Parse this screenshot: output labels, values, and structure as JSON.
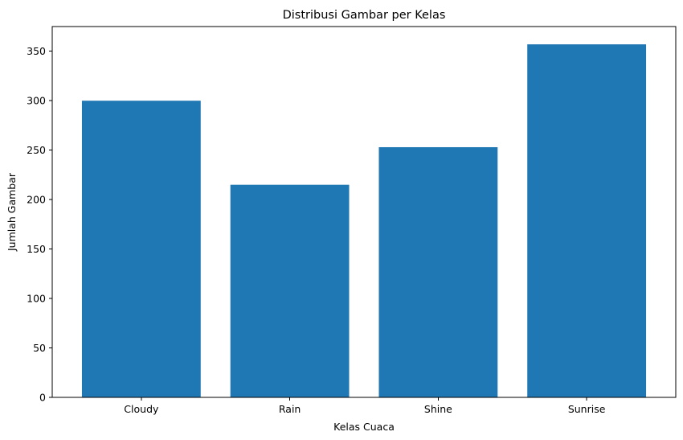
{
  "chart_data": {
    "type": "bar",
    "title": "Distribusi Gambar per Kelas",
    "xlabel": "Kelas Cuaca",
    "ylabel": "Jumlah Gambar",
    "categories": [
      "Cloudy",
      "Rain",
      "Shine",
      "Sunrise"
    ],
    "values": [
      300,
      215,
      253,
      357
    ],
    "ylim": [
      0,
      375
    ],
    "yticks": [
      0,
      50,
      100,
      150,
      200,
      250,
      300,
      350
    ],
    "grid": false,
    "bar_color": "#1f77b4"
  }
}
